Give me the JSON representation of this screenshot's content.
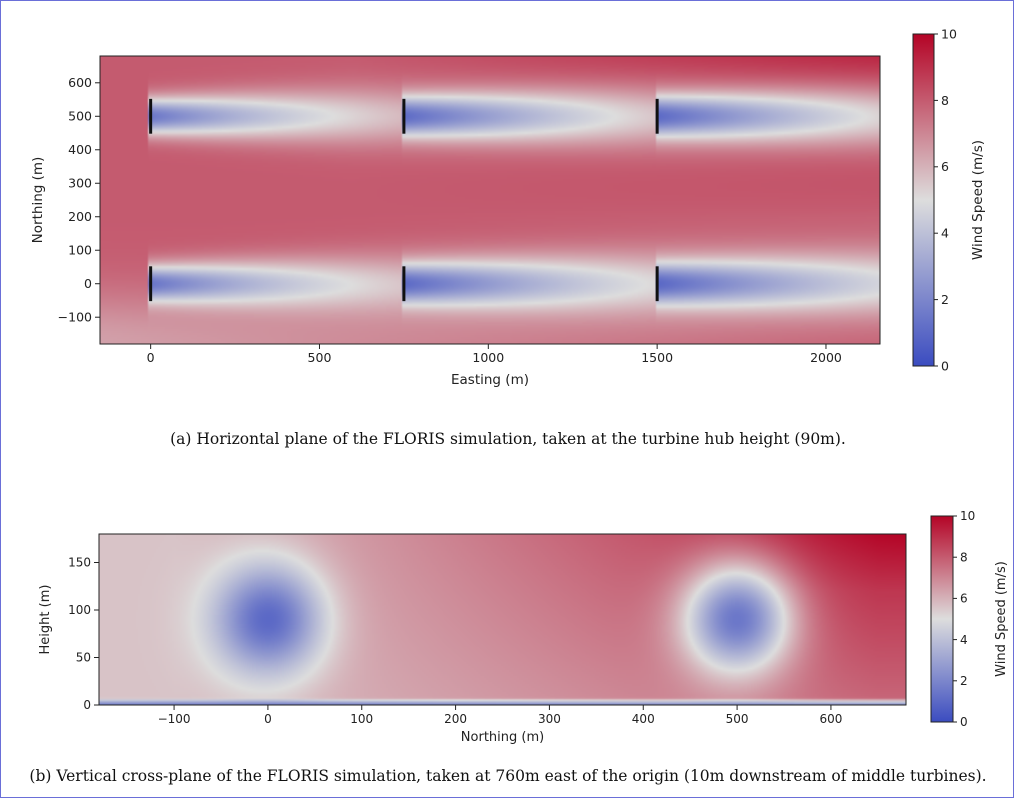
{
  "chart_data": [
    {
      "type": "heatmap",
      "xlabel": "Easting (m)",
      "ylabel": "Northing (m)",
      "xlim": [
        -150,
        2160
      ],
      "ylim": [
        -180,
        680
      ],
      "xticks": [
        0,
        500,
        1000,
        1500,
        2000
      ],
      "yticks": [
        -100,
        0,
        100,
        200,
        300,
        400,
        500,
        600
      ],
      "colorbar": {
        "label": "Wind Speed (m/s)",
        "min": 0,
        "max": 10,
        "ticks": [
          0,
          2,
          4,
          6,
          8,
          10
        ]
      },
      "turbines": [
        {
          "x": 0,
          "y": 500
        },
        {
          "x": 750,
          "y": 500
        },
        {
          "x": 1500,
          "y": 500
        },
        {
          "x": 0,
          "y": 0
        },
        {
          "x": 750,
          "y": 0
        },
        {
          "x": 1500,
          "y": 0
        }
      ],
      "freestream_wind_speed": 8,
      "min_wake_wind_speed": 1.5,
      "colormap": [
        "#3b4cc0",
        "#dddddd",
        "#b40426"
      ],
      "caption": "(a) Horizontal plane of the FLORIS simulation, taken at the turbine hub height (90m)."
    },
    {
      "type": "heatmap",
      "xlabel": "Northing (m)",
      "ylabel": "Height (m)",
      "xlim": [
        -180,
        680
      ],
      "ylim": [
        0,
        180
      ],
      "xticks": [
        -100,
        0,
        100,
        200,
        300,
        400,
        500,
        600
      ],
      "yticks": [
        0,
        50,
        100,
        150
      ],
      "colorbar": {
        "label": "Wind Speed (m/s)",
        "min": 0,
        "max": 10,
        "ticks": [
          0,
          2,
          4,
          6,
          8,
          10
        ]
      },
      "wake_centers": [
        {
          "x": 0,
          "y": 90,
          "min_wind_speed": 1
        },
        {
          "x": 500,
          "y": 90,
          "min_wind_speed": 1.5
        }
      ],
      "colormap": [
        "#3b4cc0",
        "#dddddd",
        "#b40426"
      ],
      "caption": "(b) Vertical cross-plane of the FLORIS simulation, taken at 760m east of the origin (10m downstream of middle turbines)."
    }
  ]
}
